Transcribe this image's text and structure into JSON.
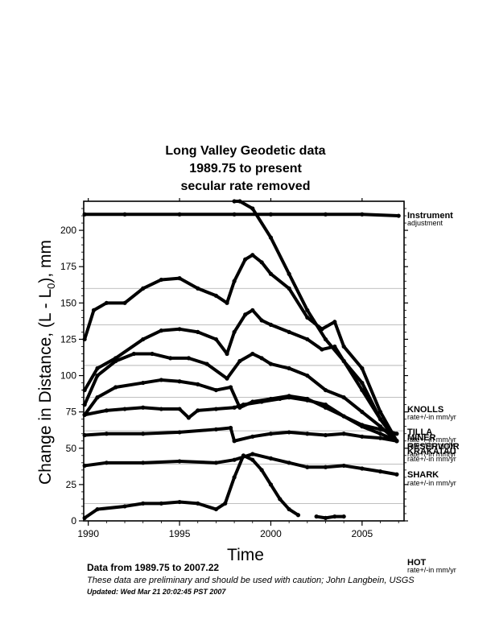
{
  "chart_data": {
    "type": "scatter",
    "title_lines": [
      "Long Valley Geodetic data",
      "1989.75 to present",
      "secular rate removed"
    ],
    "xlabel": "Time",
    "ylabel_parts": [
      "Change in Distance, (L - L",
      "0",
      "),  mm"
    ],
    "xlim": [
      1989.75,
      2007.3
    ],
    "ylim": [
      0,
      220
    ],
    "xticks": [
      1990,
      1995,
      2000,
      2005
    ],
    "xtick_labels": [
      "1990",
      "1995",
      "2000",
      "2005"
    ],
    "yticks": [
      0,
      25,
      50,
      75,
      100,
      125,
      150,
      175,
      200
    ],
    "ytick_labels": [
      "0",
      "25",
      "50",
      "75",
      "100",
      "125",
      "150",
      "175",
      "200"
    ],
    "gridlines_y": [
      12,
      39,
      62,
      85,
      107,
      135,
      160
    ],
    "series": [
      {
        "x": [
          1989.8,
          1992,
          1995,
          1998,
          2000,
          2003,
          2005,
          2007.0
        ],
        "y": [
          211,
          211,
          211,
          211,
          211,
          211,
          211,
          210
        ]
      },
      {
        "x": [
          1998.0,
          1998.3,
          1999.0,
          2000.0,
          2001.0,
          2002.0,
          2003.0,
          2004.0,
          2005.0,
          2006.0,
          2006.9
        ],
        "y": [
          220,
          220,
          215,
          195,
          170,
          145,
          125,
          110,
          90,
          70,
          55
        ]
      },
      {
        "x": [
          1989.8,
          1990.3,
          1991,
          1992,
          1993,
          1994,
          1995,
          1996,
          1997,
          1997.6,
          1998.0,
          1998.6,
          1999.0,
          1999.5,
          2000.0,
          2001.0,
          2002.0,
          2002.8,
          2003.5,
          2004.0,
          2005.0,
          2006.0,
          2006.9
        ],
        "y": [
          125,
          145,
          150,
          150,
          160,
          166,
          167,
          160,
          155,
          150,
          165,
          180,
          183,
          178,
          170,
          160,
          140,
          132,
          137,
          120,
          105,
          75,
          55
        ]
      },
      {
        "x": [
          1989.8,
          1990.5,
          1991.5,
          1993,
          1994,
          1995,
          1996,
          1997,
          1997.6,
          1998.0,
          1998.6,
          1999.0,
          1999.5,
          2000.0,
          2001.0,
          2002.0,
          2002.8,
          2003.5,
          2004.0,
          2005.0,
          2006.0,
          2006.9
        ],
        "y": [
          90,
          105,
          112,
          125,
          131,
          132,
          130,
          125,
          115,
          130,
          142,
          145,
          138,
          135,
          130,
          125,
          118,
          120,
          110,
          95,
          70,
          55
        ]
      },
      {
        "x": [
          1989.8,
          1990.5,
          1991.5,
          1992.5,
          1993.5,
          1994.5,
          1995.5,
          1996.5,
          1997.6,
          1998.3,
          1999.0,
          1999.5,
          2000.0,
          2001.0,
          2002.0,
          2003.0,
          2004.0,
          2005.0,
          2006.0,
          2006.9
        ],
        "y": [
          80,
          100,
          110,
          115,
          115,
          112,
          112,
          108,
          98,
          110,
          115,
          112,
          108,
          105,
          100,
          90,
          85,
          75,
          65,
          55
        ]
      },
      {
        "x": [
          1989.8,
          1990.5,
          1991.5,
          1993,
          1994,
          1995,
          1996,
          1997,
          1997.8,
          1998.3,
          1999,
          2000,
          2001,
          2002,
          2003,
          2004,
          2005,
          2006,
          2006.9
        ],
        "y": [
          73,
          85,
          92,
          95,
          97,
          96,
          94,
          90,
          92,
          78,
          82,
          84,
          86,
          84,
          78,
          72,
          65,
          60,
          55
        ]
      },
      {
        "x": [
          1989.8,
          1991,
          1992,
          1993,
          1994,
          1995,
          1995.5,
          1996,
          1997,
          1998,
          1998.5,
          1999.5,
          2000.5,
          2001.0,
          2002,
          2003,
          2004,
          2005,
          2006,
          2006.9
        ],
        "y": [
          73,
          76,
          77,
          78,
          77,
          77,
          71,
          76,
          77,
          78,
          80,
          82,
          84,
          85,
          83,
          80,
          72,
          66,
          63,
          60
        ]
      },
      {
        "x": [
          1989.8,
          1991,
          1993,
          1995,
          1997,
          1997.8,
          1998.0,
          1999,
          2000,
          2001,
          2002,
          2003,
          2004,
          2005,
          2006,
          2006.9
        ],
        "y": [
          59,
          60,
          60,
          61,
          63,
          64,
          55,
          58,
          60,
          61,
          60,
          59,
          60,
          58,
          57,
          55
        ]
      },
      {
        "x": [
          1989.8,
          1991,
          1993,
          1995,
          1997,
          1998,
          1999,
          2000,
          2001,
          2002,
          2003,
          2004,
          2005,
          2006,
          2006.9
        ],
        "y": [
          38,
          40,
          40,
          41,
          40,
          42,
          46,
          43,
          40,
          37,
          37,
          38,
          36,
          34,
          32
        ]
      },
      {
        "x": [
          1989.8,
          1990.5,
          1992,
          1993,
          1994,
          1995,
          1996,
          1997,
          1997.5,
          1998.0,
          1998.5,
          1999.0,
          1999.5,
          2000.0,
          2000.5,
          2001.0,
          2001.5
        ],
        "y": [
          2,
          8,
          10,
          12,
          12,
          13,
          12,
          8,
          12,
          30,
          45,
          42,
          35,
          25,
          15,
          8,
          4
        ]
      },
      {
        "x": [
          2002.5,
          2003,
          2003.5,
          2004.0
        ],
        "y": [
          3,
          2,
          3,
          3
        ]
      }
    ],
    "station_labels": [
      {
        "name": "Instrument",
        "sub": "adjustment"
      },
      {
        "name": "KNOLLS",
        "sub": "rate+/-in mm/yr"
      },
      {
        "name": "TILLA",
        "sub": "rate+/-in mm/yr"
      },
      {
        "name": "MINER",
        "sub": "rate+/-in mm/yr"
      },
      {
        "name": "RESERVOIR",
        "sub": "rate+/-in mm/yr"
      },
      {
        "name": "KRAKATAU",
        "sub": "rate+/-in mm/yr"
      },
      {
        "name": "SHARK",
        "sub": "rate+/-in mm/yr"
      },
      {
        "name": "HOT",
        "sub": "rate+/-in mm/yr"
      }
    ]
  },
  "footer": {
    "range": "Data from 1989.75 to 2007.22",
    "caution": "These data are preliminary and should be used with caution;  John Langbein, USGS",
    "updated": "Updated: Wed Mar 21 20:02:45 PST 2007"
  }
}
